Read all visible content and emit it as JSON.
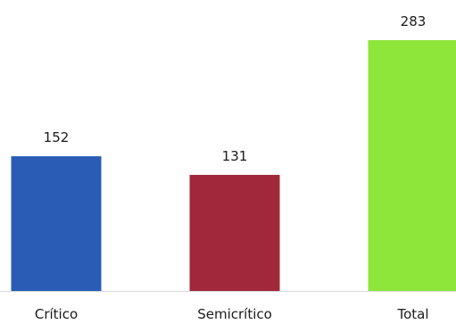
{
  "chart_data": {
    "type": "bar",
    "title": "",
    "xlabel": "",
    "ylabel": "",
    "categories": [
      "Crítico",
      "Semicrítico",
      "Total"
    ],
    "values": [
      152,
      131,
      283
    ],
    "data_labels": [
      "152",
      "131",
      "283"
    ],
    "colors": [
      "#2a5bb5",
      "#a0283a",
      "#8ee63a"
    ],
    "ylim": [
      0,
      283
    ],
    "grid": false,
    "legend": "none"
  }
}
